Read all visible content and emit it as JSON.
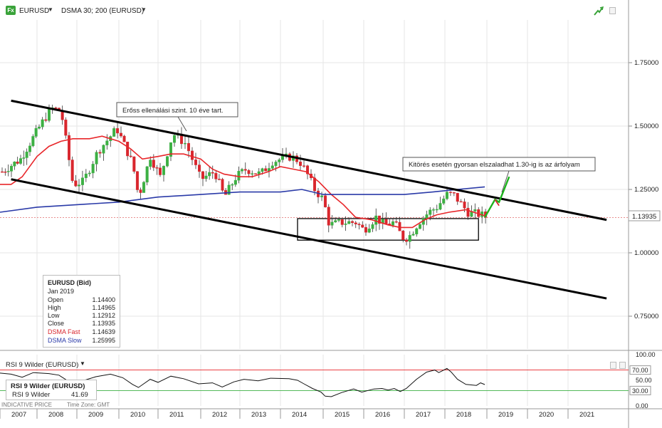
{
  "toolbar": {
    "logo_text": "Fx",
    "symbol": "EURUSD",
    "indicator": "DSMA 30; 200 (EURUSD)"
  },
  "price_label": "1.13935",
  "annotations": {
    "resistance": "Erőss ellenálási szint. 10 éve tart.",
    "breakout": "Kitörés esetén gyorsan elszaladhat 1.30-ig is az árfolyam"
  },
  "tooltip": {
    "title": "EURUSD (Bid)",
    "period": "Jan 2019",
    "rows": [
      {
        "label": "Open",
        "value": "1.14400"
      },
      {
        "label": "High",
        "value": "1.14965"
      },
      {
        "label": "Low",
        "value": "1.12912"
      },
      {
        "label": "Close",
        "value": "1.13935"
      },
      {
        "label": "DSMA Fast",
        "value": "1.14639"
      },
      {
        "label": "DSMA Slow",
        "value": "1.25995"
      }
    ]
  },
  "rsi_panel": {
    "title": "RSI 9 Wilder (EURUSD)",
    "box_title": "RSI 9 Wilder (EURUSD)",
    "box_label": "RSI 9 Wilder",
    "box_value": "41.69",
    "footer": "INDICATIVE PRICE",
    "timezone": "Time Zone: GMT"
  },
  "colors": {
    "up_candle": "#3cb043",
    "down_candle": "#d9262d",
    "fast_ma": "#e8262a",
    "slow_ma": "#2a3aa8",
    "channel": "#000000",
    "forecast": "#1db31d"
  },
  "chart_data": [
    {
      "type": "candlestick",
      "title": "EURUSD",
      "frequency": "monthly",
      "price_axis_ticks": [
        "1.75000",
        "1.50000",
        "1.25000",
        "1.00000",
        "0.75000"
      ],
      "ylim": [
        0.6,
        1.9
      ],
      "time_axis_labels": [
        "2007",
        "2008",
        "2009",
        "2010",
        "2011",
        "2012",
        "2013",
        "2014",
        "2015",
        "2016",
        "2017",
        "2018",
        "2019",
        "2020",
        "2021"
      ],
      "time_range": [
        2007.0,
        2021.95
      ],
      "last_close": 1.13935,
      "close_path": [
        [
          2007.0,
          1.32
        ],
        [
          2007.5,
          1.37
        ],
        [
          2007.9,
          1.47
        ],
        [
          2008.3,
          1.57
        ],
        [
          2008.55,
          1.56
        ],
        [
          2008.85,
          1.27
        ],
        [
          2009.1,
          1.28
        ],
        [
          2009.45,
          1.4
        ],
        [
          2009.9,
          1.49
        ],
        [
          2010.3,
          1.35
        ],
        [
          2010.45,
          1.22
        ],
        [
          2010.75,
          1.38
        ],
        [
          2011.0,
          1.3
        ],
        [
          2011.3,
          1.47
        ],
        [
          2011.6,
          1.43
        ],
        [
          2011.95,
          1.29
        ],
        [
          2012.3,
          1.32
        ],
        [
          2012.55,
          1.22
        ],
        [
          2012.85,
          1.3
        ],
        [
          2013.1,
          1.33
        ],
        [
          2013.45,
          1.31
        ],
        [
          2013.75,
          1.36
        ],
        [
          2014.2,
          1.38
        ],
        [
          2014.4,
          1.36
        ],
        [
          2014.55,
          1.32
        ],
        [
          2014.75,
          1.25
        ],
        [
          2014.95,
          1.21
        ],
        [
          2015.1,
          1.11
        ],
        [
          2015.4,
          1.12
        ],
        [
          2015.75,
          1.12
        ],
        [
          2015.95,
          1.09
        ],
        [
          2016.25,
          1.14
        ],
        [
          2016.45,
          1.11
        ],
        [
          2016.7,
          1.12
        ],
        [
          2016.9,
          1.06
        ],
        [
          2017.05,
          1.06
        ],
        [
          2017.3,
          1.12
        ],
        [
          2017.55,
          1.16
        ],
        [
          2017.75,
          1.18
        ],
        [
          2018.0,
          1.23
        ],
        [
          2018.15,
          1.23
        ],
        [
          2018.3,
          1.2
        ],
        [
          2018.5,
          1.16
        ],
        [
          2018.8,
          1.15
        ],
        [
          2018.95,
          1.14
        ]
      ],
      "series": [
        {
          "name": "DSMA Fast",
          "color": "#e8262a",
          "points": [
            [
              2007.0,
              1.27
            ],
            [
              2007.3,
              1.27
            ],
            [
              2007.6,
              1.3
            ],
            [
              2008.0,
              1.38
            ],
            [
              2008.3,
              1.42
            ],
            [
              2008.6,
              1.44
            ],
            [
              2008.9,
              1.45
            ],
            [
              2009.3,
              1.45
            ],
            [
              2009.6,
              1.46
            ],
            [
              2010.0,
              1.44
            ],
            [
              2010.3,
              1.41
            ],
            [
              2010.6,
              1.37
            ],
            [
              2011.0,
              1.38
            ],
            [
              2011.3,
              1.39
            ],
            [
              2011.6,
              1.39
            ],
            [
              2012.0,
              1.37
            ],
            [
              2012.3,
              1.33
            ],
            [
              2012.6,
              1.31
            ],
            [
              2013.0,
              1.3
            ],
            [
              2013.3,
              1.3
            ],
            [
              2013.7,
              1.32
            ],
            [
              2014.0,
              1.34
            ],
            [
              2014.3,
              1.33
            ],
            [
              2014.6,
              1.32
            ],
            [
              2014.9,
              1.28
            ],
            [
              2015.2,
              1.23
            ],
            [
              2015.5,
              1.19
            ],
            [
              2015.8,
              1.14
            ],
            [
              2016.2,
              1.13
            ],
            [
              2016.6,
              1.11
            ],
            [
              2016.9,
              1.1
            ],
            [
              2017.2,
              1.1
            ],
            [
              2017.5,
              1.13
            ],
            [
              2017.8,
              1.15
            ],
            [
              2018.1,
              1.16
            ],
            [
              2018.5,
              1.17
            ],
            [
              2018.95,
              1.146
            ]
          ]
        },
        {
          "name": "DSMA Slow",
          "color": "#2a3aa8",
          "points": [
            [
              2007.0,
              1.16
            ],
            [
              2008.0,
              1.18
            ],
            [
              2009.0,
              1.19
            ],
            [
              2010.0,
              1.2
            ],
            [
              2011.0,
              1.22
            ],
            [
              2012.0,
              1.23
            ],
            [
              2013.0,
              1.24
            ],
            [
              2014.0,
              1.24
            ],
            [
              2014.5,
              1.25
            ],
            [
              2015.0,
              1.23
            ],
            [
              2016.0,
              1.23
            ],
            [
              2017.0,
              1.23
            ],
            [
              2017.7,
              1.24
            ],
            [
              2018.3,
              1.25
            ],
            [
              2018.95,
              1.26
            ]
          ]
        }
      ],
      "trendlines": [
        {
          "from": [
            2007.3,
            1.6
          ],
          "to": [
            2021.95,
            1.13
          ]
        },
        {
          "from": [
            2007.3,
            1.29
          ],
          "to": [
            2021.95,
            0.82
          ]
        }
      ],
      "support_box": {
        "from": [
          2014.4,
          1.05
        ],
        "to": [
          2018.8,
          1.135
        ]
      },
      "forecast": [
        [
          2018.95,
          1.14
        ],
        [
          2019.2,
          1.21
        ],
        [
          2019.3,
          1.2
        ],
        [
          2019.55,
          1.3
        ]
      ]
    },
    {
      "type": "line",
      "title": "RSI 9 Wilder (EURUSD)",
      "ylim": [
        0,
        100
      ],
      "y_ticks": [
        "100.00",
        "50.00",
        "0.00"
      ],
      "levels": [
        {
          "label": "70.00",
          "value": 70,
          "color": "#e8262a"
        },
        {
          "label": "30.00",
          "value": 30,
          "color": "#3cb043"
        }
      ],
      "current_value": 41.69,
      "series": [
        {
          "name": "RSI 9 Wilder",
          "color": "#111111",
          "points": [
            [
              2007.0,
              64
            ],
            [
              2007.3,
              62
            ],
            [
              2007.6,
              56
            ],
            [
              2007.9,
              65
            ],
            [
              2008.3,
              63
            ],
            [
              2008.55,
              60
            ],
            [
              2008.85,
              45
            ],
            [
              2009.1,
              48
            ],
            [
              2009.45,
              57
            ],
            [
              2009.8,
              62
            ],
            [
              2010.1,
              55
            ],
            [
              2010.35,
              42
            ],
            [
              2010.5,
              36
            ],
            [
              2010.8,
              52
            ],
            [
              2011.0,
              46
            ],
            [
              2011.3,
              58
            ],
            [
              2011.6,
              53
            ],
            [
              2011.95,
              43
            ],
            [
              2012.3,
              45
            ],
            [
              2012.55,
              37
            ],
            [
              2012.85,
              47
            ],
            [
              2013.1,
              52
            ],
            [
              2013.45,
              49
            ],
            [
              2013.75,
              54
            ],
            [
              2014.2,
              53
            ],
            [
              2014.4,
              50
            ],
            [
              2014.55,
              43
            ],
            [
              2014.75,
              34
            ],
            [
              2014.95,
              27
            ],
            [
              2015.05,
              19
            ],
            [
              2015.2,
              18
            ],
            [
              2015.45,
              26
            ],
            [
              2015.75,
              33
            ],
            [
              2015.95,
              27
            ],
            [
              2016.25,
              33
            ],
            [
              2016.45,
              34
            ],
            [
              2016.6,
              31
            ],
            [
              2016.75,
              34
            ],
            [
              2016.9,
              28
            ],
            [
              2017.05,
              34
            ],
            [
              2017.3,
              52
            ],
            [
              2017.55,
              66
            ],
            [
              2017.75,
              70
            ],
            [
              2017.85,
              65
            ],
            [
              2018.05,
              73
            ],
            [
              2018.15,
              66
            ],
            [
              2018.3,
              52
            ],
            [
              2018.5,
              42
            ],
            [
              2018.75,
              40
            ],
            [
              2018.85,
              45
            ],
            [
              2018.95,
              41.69
            ]
          ]
        }
      ]
    }
  ]
}
